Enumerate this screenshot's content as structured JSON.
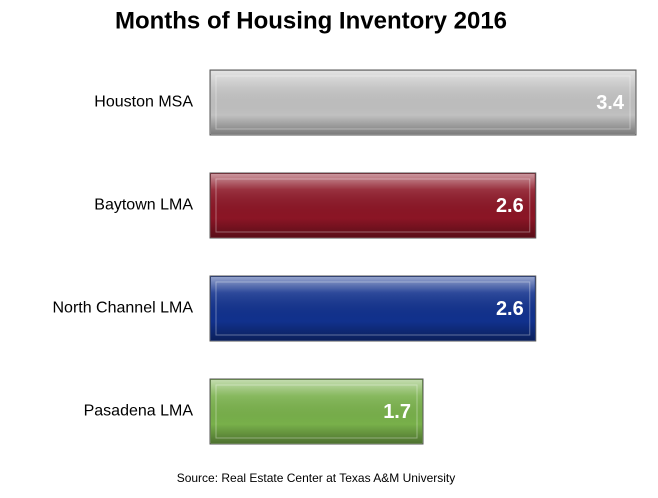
{
  "chart_data": {
    "type": "bar",
    "orientation": "horizontal",
    "title": "Months of Housing Inventory 2016",
    "categories": [
      "Houston MSA",
      "Baytown LMA",
      "North Channel LMA",
      "Pasadena LMA"
    ],
    "values": [
      3.4,
      2.6,
      2.6,
      1.7
    ],
    "colors": [
      "#c0c0c0",
      "#8b1525",
      "#11318d",
      "#78b04a"
    ],
    "source": "Source: Real Estate Center at Texas A&M University"
  }
}
